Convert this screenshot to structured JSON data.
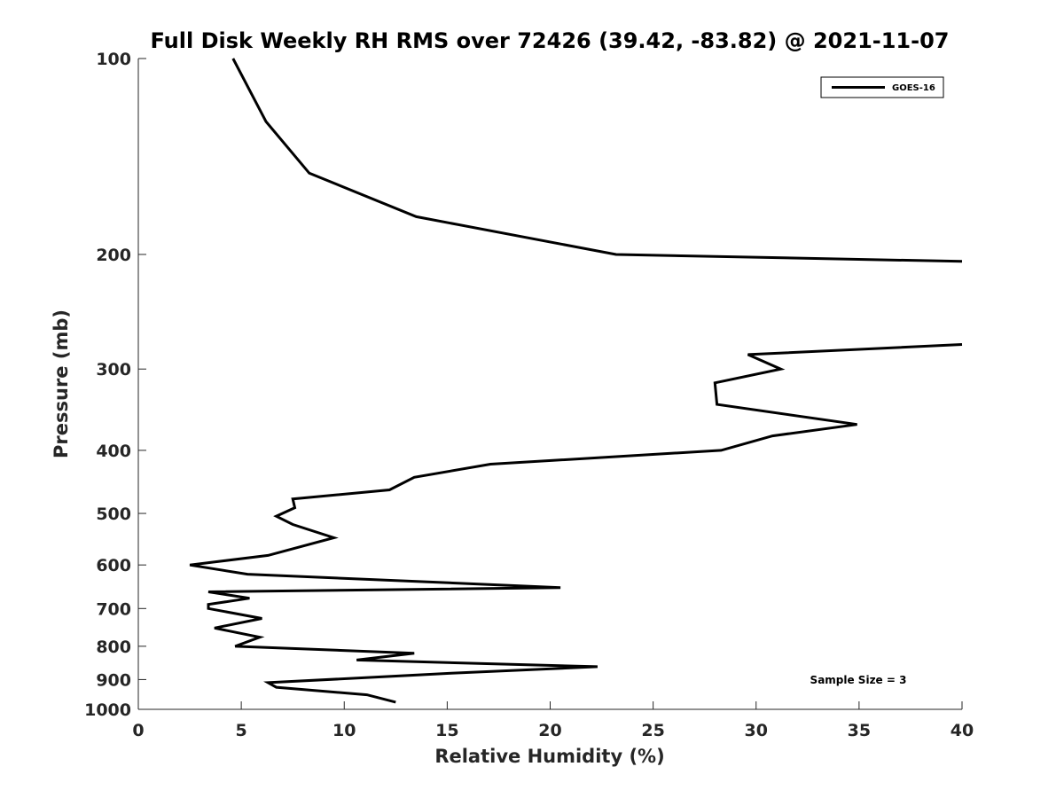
{
  "chart_data": {
    "type": "line",
    "title": "Full Disk Weekly RH RMS over 72426 (39.42, -83.82) @ 2021-11-07",
    "xlabel": "Relative Humidity (%)",
    "ylabel": "Pressure (mb)",
    "xlim": [
      0,
      40
    ],
    "ylim": [
      100,
      1000
    ],
    "y_scale": "log",
    "y_reversed": true,
    "grid": false,
    "legend_position": "top-right",
    "x_ticks": [
      "0",
      "5",
      "10",
      "15",
      "20",
      "25",
      "30",
      "35",
      "40"
    ],
    "y_ticks": [
      "100",
      "200",
      "300",
      "400",
      "500",
      "600",
      "700",
      "800",
      "900",
      "1000"
    ],
    "annotation": "Sample Size = 3",
    "series": [
      {
        "name": "GOES-16",
        "color": "#000000",
        "segments": [
          {
            "x": [
              4.6,
              6.2,
              8.3,
              13.5,
              23.2,
              40.0
            ],
            "y": [
              100,
              125,
              150,
              175,
              200,
              205
            ]
          },
          {
            "x": [
              40.0,
              29.6,
              31.2,
              28.0,
              28.1,
              34.9,
              30.8,
              28.3,
              17.1,
              13.4,
              12.2,
              7.5,
              7.6,
              6.7,
              7.5,
              9.5,
              6.3,
              2.5,
              5.3,
              20.5,
              3.4,
              5.4,
              3.4,
              3.4,
              6.0,
              3.7,
              5.9,
              4.7,
              13.4,
              10.6,
              22.3,
              15.2,
              6.3,
              6.7,
              11.1,
              12.5
            ],
            "y": [
              275,
              285,
              300,
              315,
              340,
              365,
              380,
              400,
              420,
              440,
              460,
              475,
              490,
              505,
              520,
              545,
              580,
              600,
              620,
              650,
              660,
              675,
              690,
              700,
              725,
              750,
              775,
              800,
              820,
              840,
              860,
              880,
              910,
              925,
              950,
              975
            ]
          }
        ]
      }
    ]
  }
}
